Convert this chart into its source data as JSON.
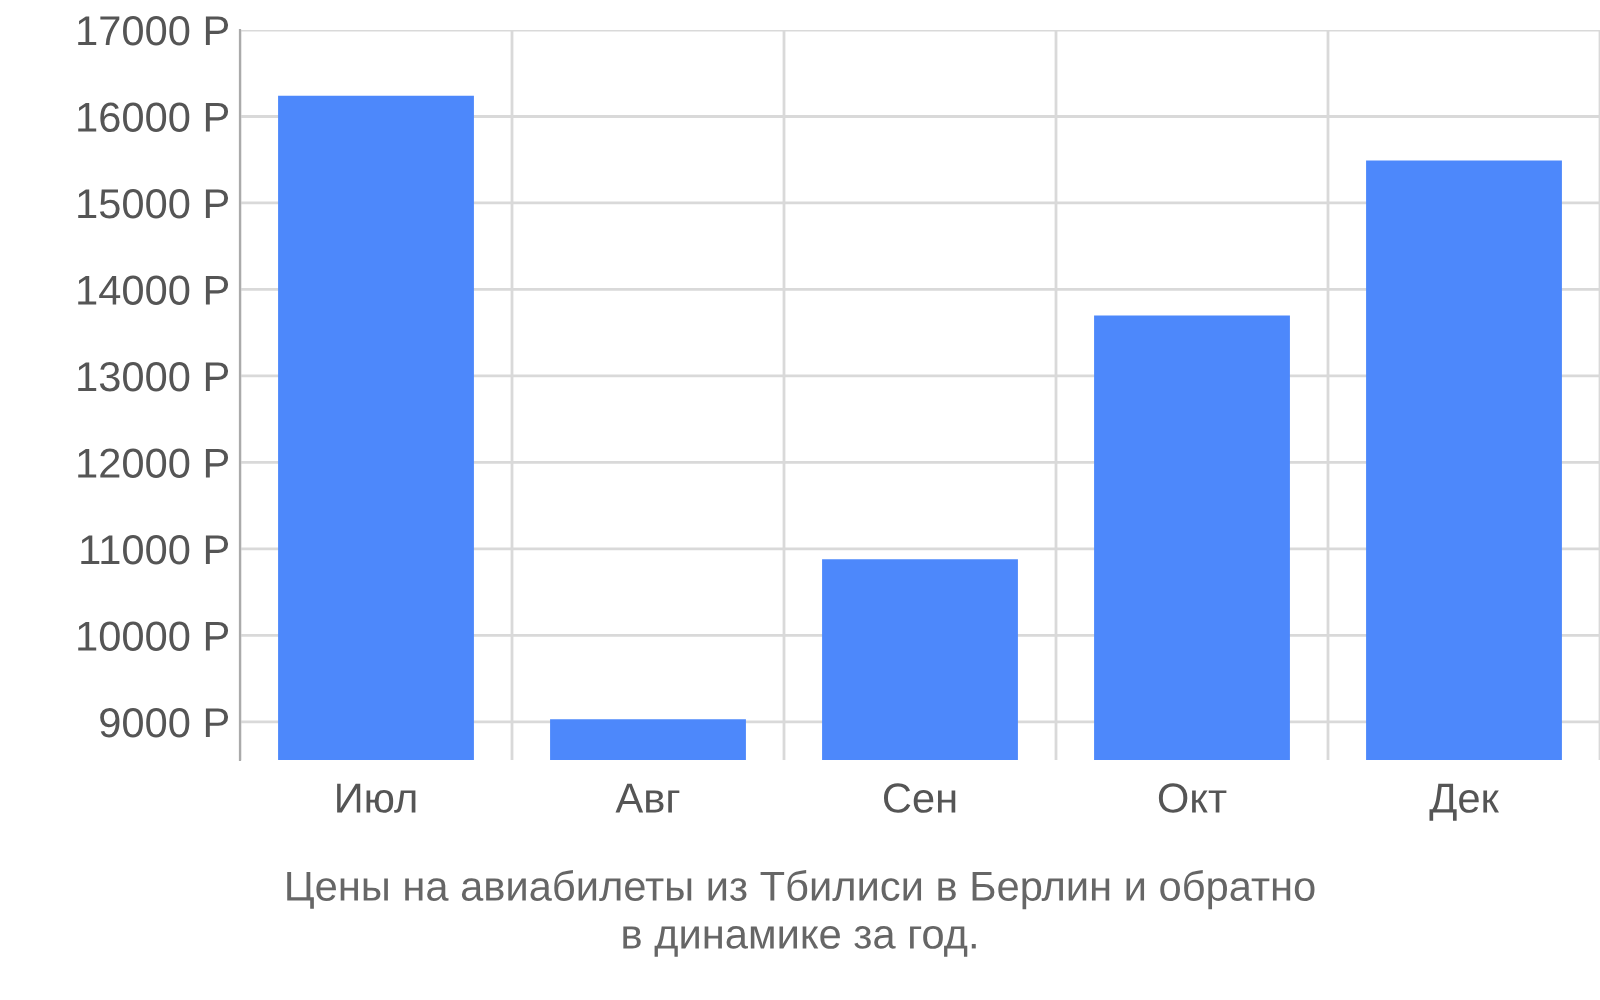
{
  "chart_data": {
    "type": "bar",
    "categories": [
      "Июл",
      "Авг",
      "Сен",
      "Окт",
      "Дек"
    ],
    "values": [
      16240,
      9030,
      10880,
      13700,
      15490
    ],
    "color": "#4d88fb",
    "ylim": [
      8560,
      17000
    ],
    "yticks": [
      {
        "value": 9000,
        "label": "9000 Р"
      },
      {
        "value": 10000,
        "label": "10000 Р"
      },
      {
        "value": 11000,
        "label": "11000 Р"
      },
      {
        "value": 12000,
        "label": "12000 Р"
      },
      {
        "value": 13000,
        "label": "13000 Р"
      },
      {
        "value": 14000,
        "label": "14000 Р"
      },
      {
        "value": 15000,
        "label": "15000 Р"
      },
      {
        "value": 16000,
        "label": "16000 Р"
      },
      {
        "value": 17000,
        "label": "17000 Р"
      }
    ],
    "grid": true,
    "annotations": [
      "Цены на авиабилеты из Тбилиси в Берлин и обратно\nв динамике за год."
    ]
  }
}
